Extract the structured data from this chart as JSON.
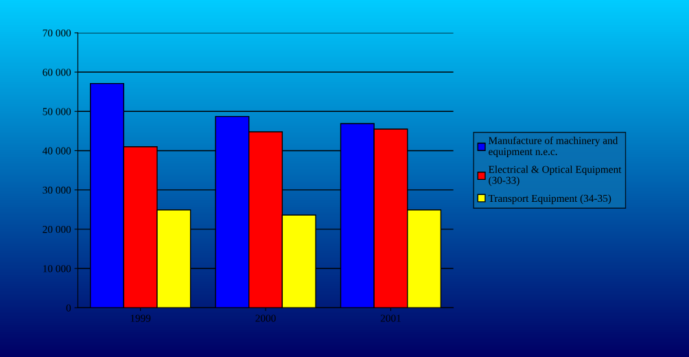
{
  "chart_data": {
    "type": "bar",
    "categories": [
      "1999",
      "2000",
      "2001"
    ],
    "series": [
      {
        "name": "Manufacture of machinery and\nequipment n.e.c.",
        "color": "#0000ff",
        "values": [
          57100,
          48700,
          46900
        ]
      },
      {
        "name": "Electrical & Optical Equipment\n(30-33)",
        "color": "#ff0000",
        "values": [
          41000,
          44800,
          45500
        ]
      },
      {
        "name": "Transport Equipment (34-35)",
        "color": "#ffff00",
        "values": [
          24900,
          23600,
          24900
        ]
      }
    ],
    "ylim": [
      0,
      70000
    ],
    "yticks": [
      {
        "value": 0,
        "label": "0"
      },
      {
        "value": 10000,
        "label": "10 000"
      },
      {
        "value": 20000,
        "label": "20 000"
      },
      {
        "value": 30000,
        "label": "30 000"
      },
      {
        "value": 40000,
        "label": "40 000"
      },
      {
        "value": 50000,
        "label": "50 000"
      },
      {
        "value": 60000,
        "label": "60 000"
      },
      {
        "value": 70000,
        "label": "70 000"
      }
    ],
    "grid": "y",
    "legend": "right"
  }
}
